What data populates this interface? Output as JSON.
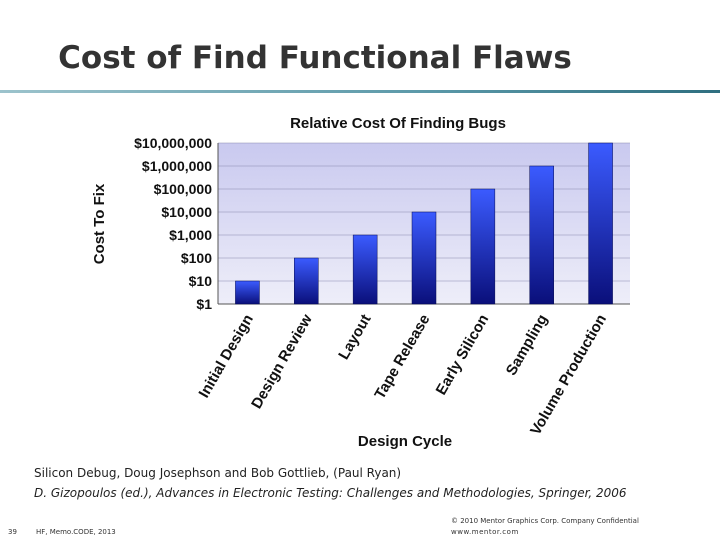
{
  "slide": {
    "title": "Cost of Find Functional Flaws",
    "citation_line1": "Silicon Debug, Doug Josephson and Bob Gottlieb, (Paul Ryan)",
    "citation_line2": "D. Gizopoulos (ed.), Advances in Electronic Testing: Challenges and Methodologies, Springer, 2006",
    "page_number": "39",
    "footer_left": "HF, Memo.CODE, 2013",
    "footer_right_line1": "© 2010 Mentor Graphics Corp. Company Confidential",
    "footer_right_line2": "www.mentor.com"
  },
  "colors": {
    "bar_top": "#3b5bff",
    "bar_bottom": "#0a0f7a",
    "plot_background": "#dcdcf4",
    "title_rule": "#5a98a8"
  },
  "chart_data": {
    "type": "bar",
    "title": "Relative Cost Of Finding Bugs",
    "xlabel": "Design Cycle",
    "ylabel": "Cost To Fix",
    "y_scale": "log",
    "ylim": [
      1,
      10000000
    ],
    "y_ticks": [
      1,
      10,
      100,
      1000,
      10000,
      100000,
      1000000,
      10000000
    ],
    "y_tick_labels": [
      "$1",
      "$10",
      "$100",
      "$1,000",
      "$10,000",
      "$100,000",
      "$1,000,000",
      "$10,000,000"
    ],
    "categories": [
      "Initial Design",
      "Design Review",
      "Layout",
      "Tape Release",
      "Early Silicon",
      "Sampling",
      "Volume Production"
    ],
    "values": [
      10,
      100,
      1000,
      10000,
      100000,
      1000000,
      10000000
    ],
    "grid": true,
    "legend": "none"
  }
}
